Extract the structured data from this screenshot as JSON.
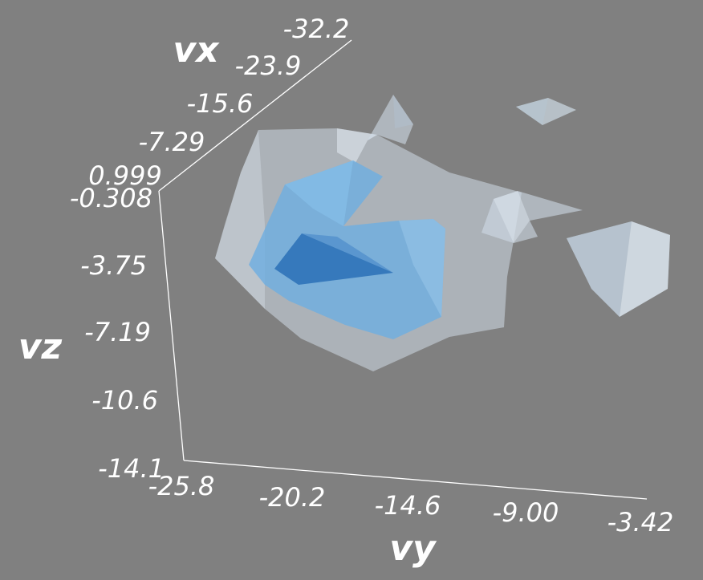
{
  "chart_data": {
    "type": "3d-isosurface",
    "background": "#808080",
    "surface_colors": {
      "outer": "#cfdbe6",
      "inner": "#6faee0",
      "cavity": "#2f73b8"
    },
    "axes": {
      "vx": {
        "label": "vx",
        "ticks": [
          "-32.2",
          "-23.9",
          "-15.6",
          "-7.29",
          "0.999"
        ],
        "range": [
          0.999,
          -32.2
        ]
      },
      "vy": {
        "label": "vy",
        "ticks": [
          "-25.8",
          "-20.2",
          "-14.6",
          "-9.00",
          "-3.42"
        ],
        "range": [
          -25.8,
          -3.42
        ]
      },
      "vz": {
        "label": "vz",
        "ticks": [
          "-0.308",
          "-3.75",
          "-7.19",
          "-10.6",
          "-14.1"
        ],
        "range": [
          -14.1,
          -0.308
        ]
      }
    }
  }
}
